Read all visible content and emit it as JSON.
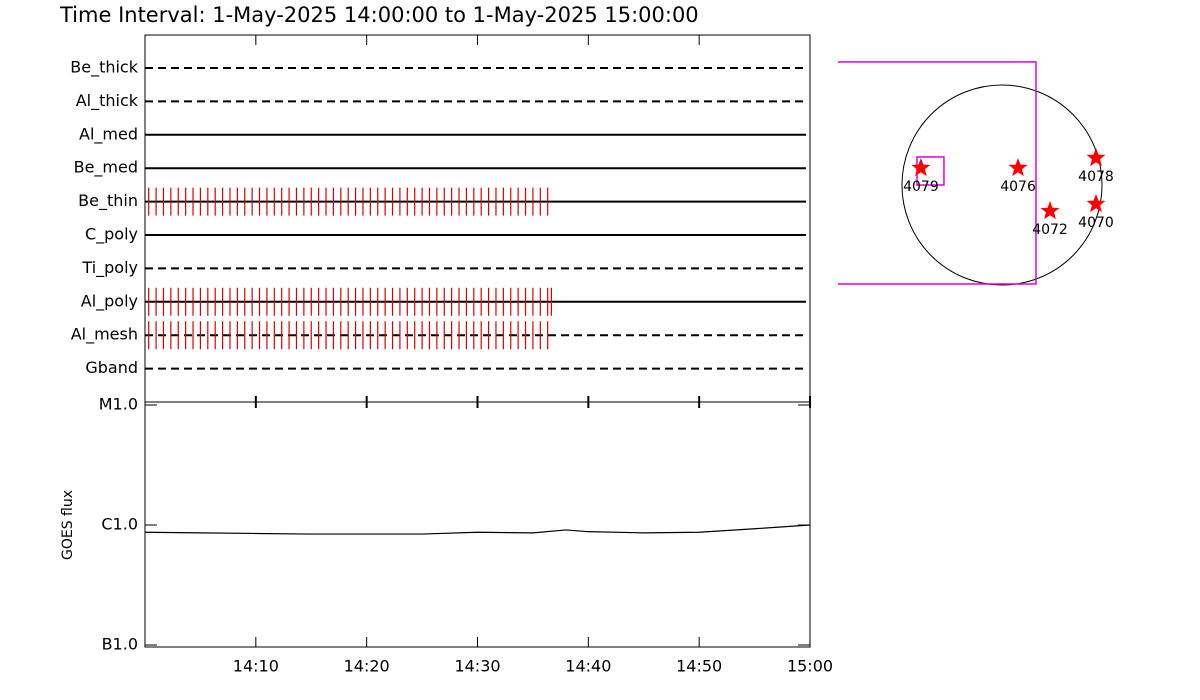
{
  "title": "Time Interval:  1-May-2025 14:00:00 to  1-May-2025 15:00:00",
  "chart_data": [
    {
      "type": "timeline",
      "xlim": [
        "14:00",
        "15:00"
      ],
      "rows": [
        {
          "name": "Be_thick",
          "linestyle": "dashed",
          "times": []
        },
        {
          "name": "Al_thick",
          "linestyle": "dashed",
          "times": []
        },
        {
          "name": "Al_med",
          "linestyle": "solid",
          "times": []
        },
        {
          "name": "Be_med",
          "linestyle": "solid",
          "times": []
        },
        {
          "name": "Be_thin",
          "linestyle": "solid",
          "color": "#dd0000",
          "times": [
            "14:00:20",
            "14:01:00",
            "14:01:40",
            "14:02:20",
            "14:03:00",
            "14:03:40",
            "14:04:20",
            "14:05:00",
            "14:05:40",
            "14:06:20",
            "14:07:00",
            "14:07:40",
            "14:08:20",
            "14:09:00",
            "14:09:40",
            "14:10:20",
            "14:11:00",
            "14:11:40",
            "14:12:20",
            "14:13:00",
            "14:13:40",
            "14:14:20",
            "14:15:00",
            "14:15:40",
            "14:16:20",
            "14:17:00",
            "14:17:40",
            "14:18:20",
            "14:19:00",
            "14:19:40",
            "14:20:20",
            "14:21:00",
            "14:21:40",
            "14:22:20",
            "14:23:00",
            "14:23:40",
            "14:24:20",
            "14:25:00",
            "14:25:40",
            "14:26:20",
            "14:27:00",
            "14:27:40",
            "14:28:20",
            "14:29:00",
            "14:29:40",
            "14:30:20",
            "14:31:00",
            "14:31:40",
            "14:32:20",
            "14:33:00",
            "14:33:40",
            "14:34:20",
            "14:35:00",
            "14:35:40",
            "14:36:20"
          ]
        },
        {
          "name": "C_poly",
          "linestyle": "solid",
          "times": []
        },
        {
          "name": "Ti_poly",
          "linestyle": "dashed",
          "times": []
        },
        {
          "name": "Al_poly",
          "linestyle": "solid",
          "color": "#dd0000",
          "times": [
            "14:00:20",
            "14:01:00",
            "14:01:40",
            "14:02:20",
            "14:03:00",
            "14:03:40",
            "14:04:20",
            "14:05:00",
            "14:05:40",
            "14:06:20",
            "14:07:00",
            "14:07:40",
            "14:08:20",
            "14:09:00",
            "14:09:40",
            "14:10:20",
            "14:11:00",
            "14:11:40",
            "14:12:20",
            "14:13:00",
            "14:13:40",
            "14:14:20",
            "14:15:00",
            "14:15:40",
            "14:16:20",
            "14:17:00",
            "14:17:40",
            "14:18:20",
            "14:19:00",
            "14:19:40",
            "14:20:20",
            "14:21:00",
            "14:21:40",
            "14:22:20",
            "14:23:00",
            "14:23:40",
            "14:24:20",
            "14:25:00",
            "14:25:40",
            "14:26:20",
            "14:27:00",
            "14:27:40",
            "14:28:20",
            "14:29:00",
            "14:29:40",
            "14:30:20",
            "14:31:00",
            "14:31:40",
            "14:32:20",
            "14:33:00",
            "14:33:40",
            "14:34:20",
            "14:35:00",
            "14:35:40",
            "14:36:20",
            "14:36:40"
          ]
        },
        {
          "name": "Al_mesh",
          "linestyle": "dashed",
          "color": "#dd0000",
          "times": [
            "14:00:20",
            "14:01:00",
            "14:01:40",
            "14:02:20",
            "14:03:00",
            "14:03:40",
            "14:04:20",
            "14:05:00",
            "14:05:40",
            "14:06:20",
            "14:07:00",
            "14:07:40",
            "14:08:20",
            "14:09:00",
            "14:09:40",
            "14:10:20",
            "14:11:00",
            "14:11:40",
            "14:12:20",
            "14:13:00",
            "14:13:40",
            "14:14:20",
            "14:15:00",
            "14:15:40",
            "14:16:20",
            "14:17:00",
            "14:17:40",
            "14:18:20",
            "14:19:00",
            "14:19:40",
            "14:20:20",
            "14:21:00",
            "14:21:40",
            "14:22:20",
            "14:23:00",
            "14:23:40",
            "14:24:20",
            "14:25:00",
            "14:25:40",
            "14:26:20",
            "14:27:00",
            "14:27:40",
            "14:28:20",
            "14:29:00",
            "14:29:40",
            "14:30:20",
            "14:31:00",
            "14:31:40",
            "14:32:20",
            "14:33:00",
            "14:33:40",
            "14:34:20",
            "14:35:00",
            "14:35:40",
            "14:36:20"
          ]
        },
        {
          "name": "Gband",
          "linestyle": "dashed",
          "times": []
        }
      ]
    },
    {
      "type": "line",
      "ylabel": "GOES flux",
      "log_scale": true,
      "x": [
        "14:00",
        "14:05",
        "14:10",
        "14:15",
        "14:20",
        "14:25",
        "14:30",
        "14:35",
        "14:38",
        "14:40",
        "14:45",
        "14:50",
        "14:55",
        "15:00"
      ],
      "series": [
        {
          "color": "#000000",
          "values": [
            8.7e-07,
            8.6e-07,
            8.5e-07,
            8.4e-07,
            8.4e-07,
            8.4e-07,
            8.7e-07,
            8.6e-07,
            9.1e-07,
            8.8e-07,
            8.6e-07,
            8.7e-07,
            9.3e-07,
            1e-06
          ]
        }
      ],
      "xlim": [
        "14:00",
        "15:00"
      ],
      "xticks": [
        "14:10",
        "14:20",
        "14:30",
        "14:40",
        "14:50",
        "15:00"
      ],
      "ylim": [
        1e-07,
        1e-05
      ],
      "yticks": [
        {
          "value": 1e-05,
          "label": "M1.0"
        },
        {
          "value": 1e-06,
          "label": "C1.0"
        },
        {
          "value": 1e-07,
          "label": "B1.0"
        }
      ]
    },
    {
      "type": "sunmap",
      "disk_radius": 960,
      "xlim": [
        -1574,
        1574
      ],
      "ylim": [
        -1574,
        1574
      ],
      "boxes": [
        {
          "x": [
            -1700,
            326
          ],
          "y": [
            -950,
            1181
          ],
          "color": "#e000e0"
        },
        {
          "x": [
            -816,
            -557
          ],
          "y": [
            0,
            269
          ],
          "color": "#e000e0"
        }
      ],
      "regions": [
        {
          "label": "4079",
          "x": -778,
          "y": 163
        },
        {
          "label": "4076",
          "x": 154,
          "y": 163
        },
        {
          "label": "4078",
          "x": 902,
          "y": 259
        },
        {
          "label": "4072",
          "x": 461,
          "y": -250
        },
        {
          "label": "4070",
          "x": 902,
          "y": -182
        }
      ],
      "color": "#ff0000"
    }
  ]
}
